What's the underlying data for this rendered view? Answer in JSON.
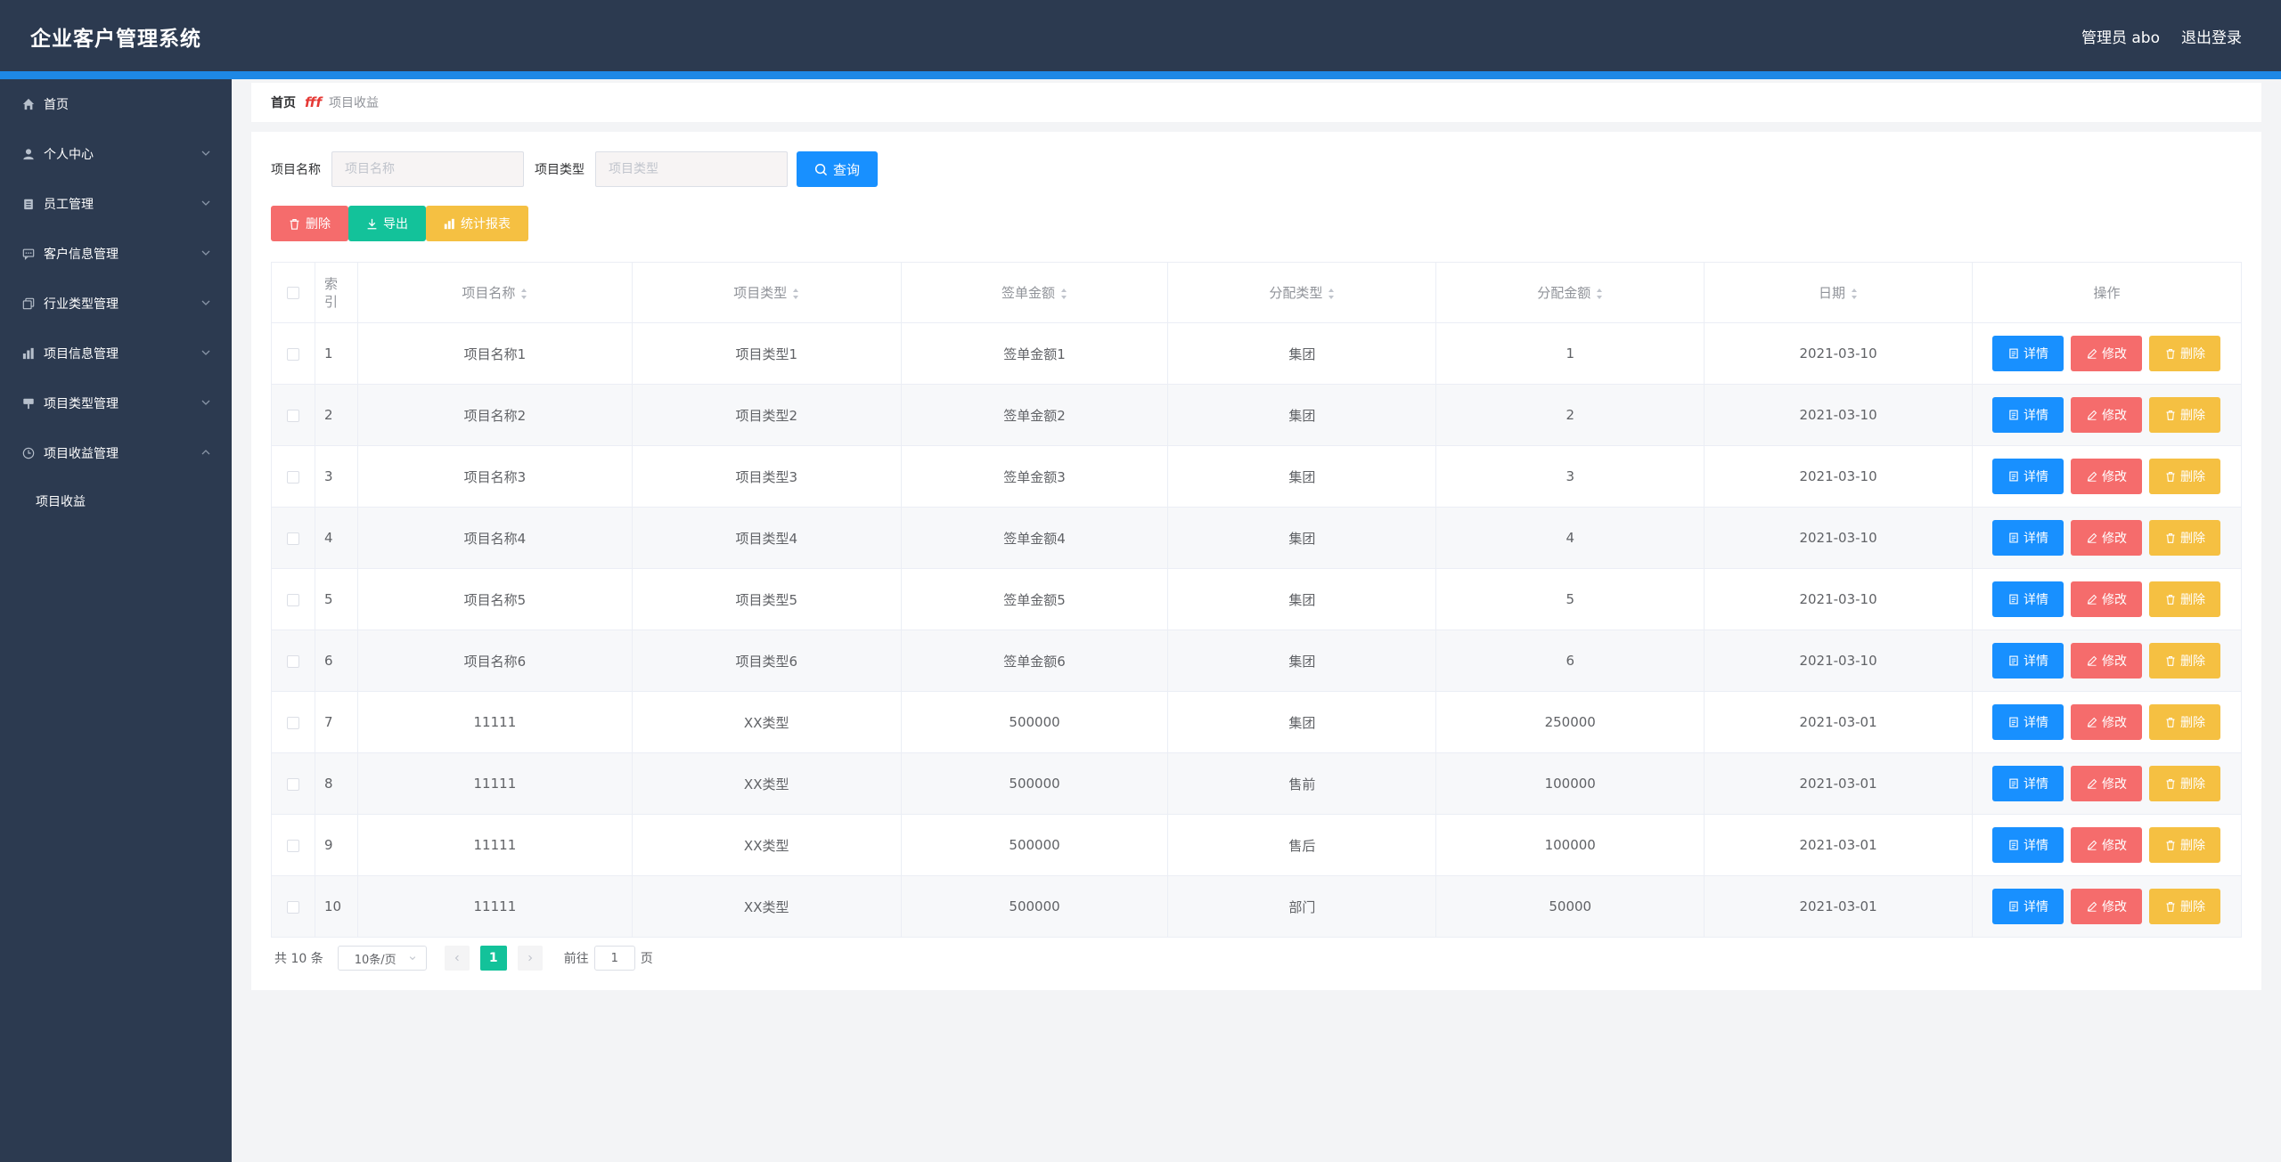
{
  "header": {
    "title": "企业客户管理系统",
    "user": "管理员 abo",
    "logout": "退出登录"
  },
  "sidebar": {
    "items": [
      {
        "label": "首页",
        "icon": "home-icon",
        "expandable": false
      },
      {
        "label": "个人中心",
        "icon": "user-icon",
        "expandable": true
      },
      {
        "label": "员工管理",
        "icon": "clipboard-icon",
        "expandable": true
      },
      {
        "label": "客户信息管理",
        "icon": "chat-icon",
        "expandable": true
      },
      {
        "label": "行业类型管理",
        "icon": "copy-icon",
        "expandable": true
      },
      {
        "label": "项目信息管理",
        "icon": "bar-chart-icon",
        "expandable": true
      },
      {
        "label": "项目类型管理",
        "icon": "sign-icon",
        "expandable": true
      },
      {
        "label": "项目收益管理",
        "icon": "clock-icon",
        "expandable": true,
        "expanded": true
      }
    ],
    "sub_item": "项目收益"
  },
  "breadcrumb": {
    "home": "首页",
    "separator": "fff",
    "current": "项目收益"
  },
  "search": {
    "name_label": "项目名称",
    "name_placeholder": "项目名称",
    "type_label": "项目类型",
    "type_placeholder": "项目类型",
    "query_button": "查询"
  },
  "actions": {
    "delete": "删除",
    "export": "导出",
    "report": "统计报表"
  },
  "table": {
    "headers": {
      "index": "索引",
      "name": "项目名称",
      "type": "项目类型",
      "amount": "签单金额",
      "alloc_type": "分配类型",
      "alloc_amount": "分配金额",
      "date": "日期",
      "ops": "操作"
    },
    "op_labels": {
      "detail": "详情",
      "edit": "修改",
      "delete": "删除"
    },
    "rows": [
      {
        "idx": "1",
        "name": "项目名称1",
        "type": "项目类型1",
        "amount": "签单金额1",
        "alloc_type": "集团",
        "alloc_amount": "1",
        "date": "2021-03-10"
      },
      {
        "idx": "2",
        "name": "项目名称2",
        "type": "项目类型2",
        "amount": "签单金额2",
        "alloc_type": "集团",
        "alloc_amount": "2",
        "date": "2021-03-10"
      },
      {
        "idx": "3",
        "name": "项目名称3",
        "type": "项目类型3",
        "amount": "签单金额3",
        "alloc_type": "集团",
        "alloc_amount": "3",
        "date": "2021-03-10"
      },
      {
        "idx": "4",
        "name": "项目名称4",
        "type": "项目类型4",
        "amount": "签单金额4",
        "alloc_type": "集团",
        "alloc_amount": "4",
        "date": "2021-03-10"
      },
      {
        "idx": "5",
        "name": "项目名称5",
        "type": "项目类型5",
        "amount": "签单金额5",
        "alloc_type": "集团",
        "alloc_amount": "5",
        "date": "2021-03-10"
      },
      {
        "idx": "6",
        "name": "项目名称6",
        "type": "项目类型6",
        "amount": "签单金额6",
        "alloc_type": "集团",
        "alloc_amount": "6",
        "date": "2021-03-10"
      },
      {
        "idx": "7",
        "name": "11111",
        "type": "XX类型",
        "amount": "500000",
        "alloc_type": "集团",
        "alloc_amount": "250000",
        "date": "2021-03-01"
      },
      {
        "idx": "8",
        "name": "11111",
        "type": "XX类型",
        "amount": "500000",
        "alloc_type": "售前",
        "alloc_amount": "100000",
        "date": "2021-03-01"
      },
      {
        "idx": "9",
        "name": "11111",
        "type": "XX类型",
        "amount": "500000",
        "alloc_type": "售后",
        "alloc_amount": "100000",
        "date": "2021-03-01"
      },
      {
        "idx": "10",
        "name": "11111",
        "type": "XX类型",
        "amount": "500000",
        "alloc_type": "部门",
        "alloc_amount": "50000",
        "date": "2021-03-01"
      }
    ]
  },
  "pagination": {
    "total": "共 10 条",
    "page_size": "10条/页",
    "current_page": "1",
    "goto_prefix": "前往",
    "goto_value": "1",
    "goto_suffix": "页"
  },
  "colors": {
    "header_bg": "#2c3a50",
    "accent_stripe": "#1e88e5",
    "primary": "#1890ff",
    "danger": "#f56c6c",
    "success": "#13c29a",
    "warning": "#f5c042"
  }
}
